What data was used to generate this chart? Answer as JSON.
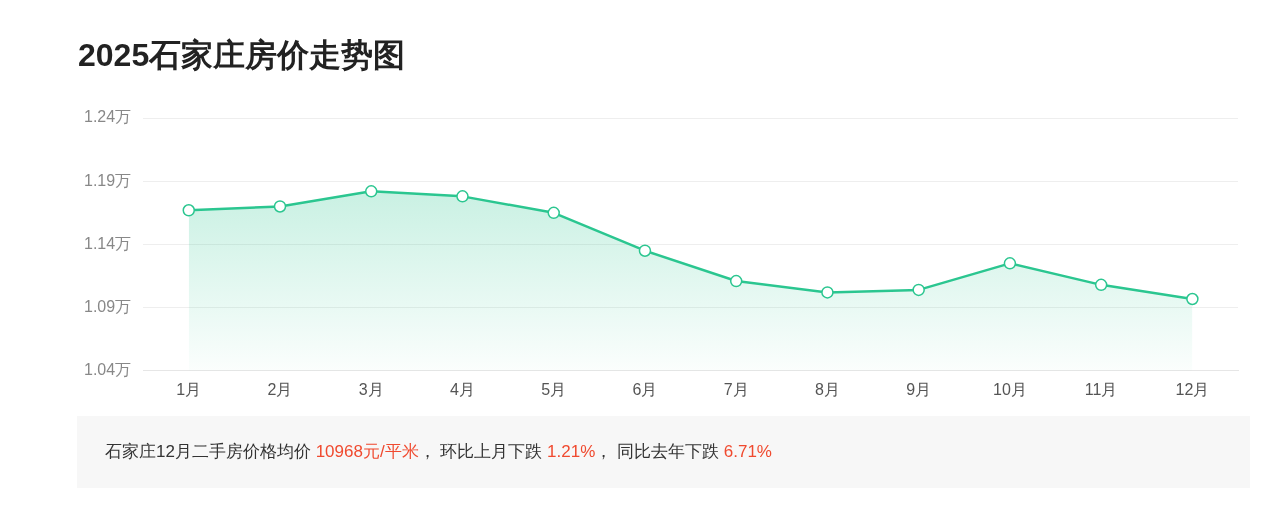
{
  "chart_data": {
    "type": "area",
    "title": "2025石家庄房价走势图",
    "categories": [
      "1月",
      "2月",
      "3月",
      "4月",
      "5月",
      "6月",
      "7月",
      "8月",
      "9月",
      "10月",
      "11月",
      "12月"
    ],
    "series": [
      {
        "color": "#2bc690",
        "values": [
          1.167,
          1.17,
          1.182,
          1.178,
          1.165,
          1.135,
          1.111,
          1.102,
          1.104,
          1.125,
          1.108,
          1.0968
        ]
      }
    ],
    "ylim": [
      1.04,
      1.24
    ],
    "yticks": [
      {
        "value": 1.04,
        "label": "1.04万"
      },
      {
        "value": 1.09,
        "label": "1.09万"
      },
      {
        "value": 1.14,
        "label": "1.14万"
      },
      {
        "value": 1.19,
        "label": "1.19万"
      },
      {
        "value": 1.24,
        "label": "1.24万"
      }
    ],
    "grid": "y",
    "marker": "circle",
    "legend": false,
    "annotations": [
      "石家庄12月二手房价格均价 ",
      "10968元/平米",
      "， 环比上月下跌 ",
      "1.21%",
      "， 同比去年下跌 ",
      "6.71%"
    ]
  }
}
